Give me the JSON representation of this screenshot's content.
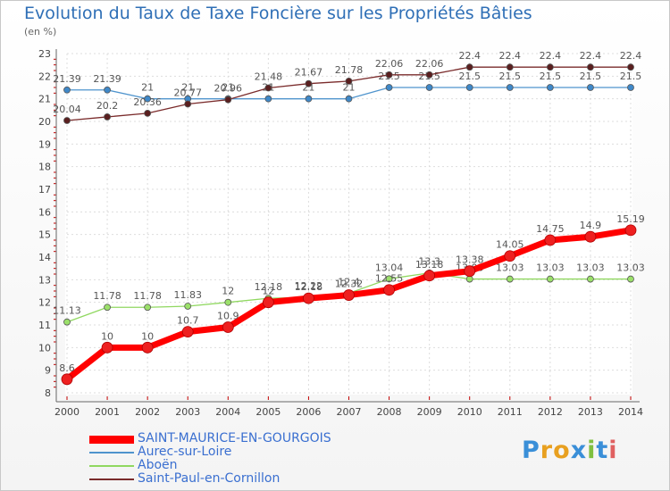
{
  "chart_data": {
    "type": "line",
    "title": "Evolution du Taux de Taxe Foncière sur les Propriétés Bâties",
    "ylabel": "(en %)",
    "x": [
      "2000",
      "2001",
      "2002",
      "2003",
      "2004",
      "2005",
      "2006",
      "2007",
      "2008",
      "2009",
      "2010",
      "2011",
      "2012",
      "2013",
      "2014"
    ],
    "ylim": [
      8,
      23
    ],
    "yticks": [
      "8",
      "9",
      "10",
      "11",
      "12",
      "13",
      "14",
      "15",
      "16",
      "17",
      "18",
      "19",
      "20",
      "21",
      "22",
      "23"
    ],
    "series": [
      {
        "name": "SAINT-MAURICE-EN-GOURGOIS",
        "color": "#ff0000",
        "values": [
          8.6,
          10,
          10,
          10.7,
          10.9,
          12,
          12.18,
          12.32,
          12.55,
          13.18,
          13.38,
          14.05,
          14.75,
          14.9,
          15.19
        ],
        "labels": [
          "8.6",
          "10",
          "10",
          "10.7",
          "10.9",
          "12",
          "12.18",
          "12.32",
          "12.55",
          "13.18",
          "13.38",
          "14.05",
          "14.75",
          "14.9",
          "15.19"
        ]
      },
      {
        "name": "Aurec-sur-Loire",
        "color": "#4f94cd",
        "values": [
          21.39,
          21.39,
          21,
          21,
          21,
          21,
          21,
          21,
          21.5,
          21.5,
          21.5,
          21.5,
          21.5,
          21.5,
          21.5
        ],
        "labels": [
          "21.39",
          "21.39",
          "21",
          "21",
          "21",
          "21",
          "21",
          "21",
          "21.5",
          "21.5",
          "21.5",
          "21.5",
          "21.5",
          "21.5",
          "21.5"
        ]
      },
      {
        "name": "Aboën",
        "color": "#90d860",
        "values": [
          11.13,
          11.78,
          11.78,
          11.83,
          12,
          12.18,
          12.22,
          12.4,
          13.04,
          13.3,
          13.03,
          13.03,
          13.03,
          13.03,
          13.03
        ],
        "labels": [
          "11.13",
          "11.78",
          "11.78",
          "11.83",
          "12",
          "12.18",
          "12.22",
          "12.4",
          "13.04",
          "13.3",
          "13.03",
          "13.03",
          "13.03",
          "13.03",
          "13.03"
        ]
      },
      {
        "name": "Saint-Paul-en-Cornillon",
        "color": "#7a2b2b",
        "values": [
          20.04,
          20.2,
          20.36,
          20.77,
          20.96,
          21.48,
          21.67,
          21.78,
          22.06,
          22.06,
          22.4,
          22.4,
          22.4,
          22.4,
          22.4
        ],
        "labels": [
          "20.04",
          "20.2",
          "20.36",
          "20.77",
          "20.96",
          "21.48",
          "21.67",
          "21.78",
          "22.06",
          "22.06",
          "22.4",
          "22.4",
          "22.4",
          "22.4",
          "22.4"
        ]
      }
    ]
  },
  "logo": {
    "text": "Proxiti",
    "letters": [
      "P",
      "r",
      "o",
      "x",
      "i",
      "t",
      "i"
    ],
    "colors": [
      "#3a8fd8",
      "#e8a020",
      "#e8a020",
      "#3a8fd8",
      "#80c040",
      "#3a8fd8",
      "#e06060"
    ]
  }
}
